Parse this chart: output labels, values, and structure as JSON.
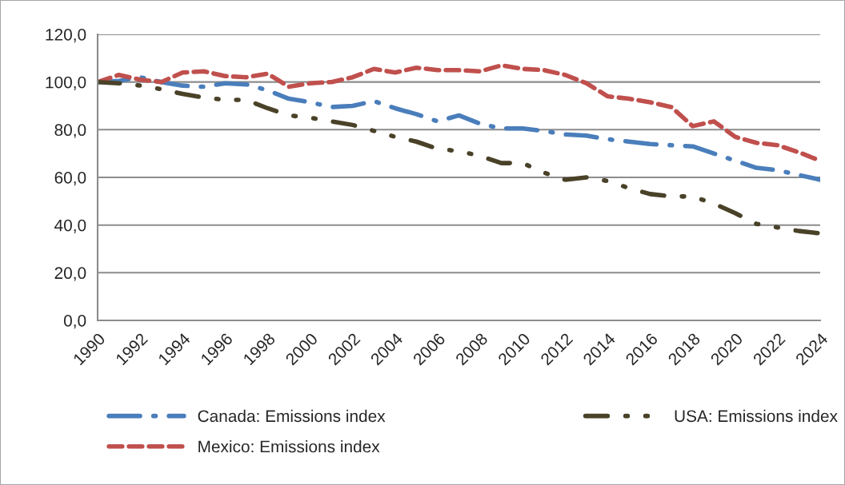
{
  "chart_data": {
    "type": "line",
    "x": [
      1990,
      1991,
      1992,
      1993,
      1994,
      1995,
      1996,
      1997,
      1998,
      1999,
      2000,
      2001,
      2002,
      2003,
      2004,
      2005,
      2006,
      2007,
      2008,
      2009,
      2010,
      2011,
      2012,
      2013,
      2014,
      2015,
      2016,
      2017,
      2018,
      2019,
      2020,
      2021,
      2022,
      2023,
      2024
    ],
    "series": [
      {
        "name": "Canada: Emissions index",
        "color": "#4a7ebb",
        "line_style": "dashed",
        "values": [
          100,
          100.5,
          102,
          100,
          98.5,
          98,
          99.5,
          99,
          96.5,
          93,
          91.5,
          89.5,
          90,
          92,
          89,
          86.5,
          83.5,
          86,
          82.5,
          80.5,
          80.5,
          79.5,
          78,
          77.5,
          76,
          75,
          74,
          73.5,
          73,
          70,
          67,
          64,
          63,
          61,
          59
        ]
      },
      {
        "name": "Mexico: Emissions index",
        "color": "#c0504d",
        "line_style": "dashed",
        "values": [
          100,
          103,
          101,
          100,
          104,
          104.5,
          102.5,
          102,
          103.5,
          98,
          99.5,
          100,
          102,
          105.5,
          104,
          106,
          105,
          105,
          104.5,
          107,
          105.5,
          105,
          103,
          99.5,
          94,
          93,
          91.5,
          89.5,
          81.5,
          83.5,
          77,
          74.5,
          73.5,
          70.5,
          67
        ]
      },
      {
        "name": "USA: Emissions index",
        "color": "#4a4228",
        "line_style": "dashed",
        "values": [
          100,
          99.5,
          98.5,
          97,
          95,
          93.5,
          92.5,
          92.5,
          89,
          86,
          85,
          83.5,
          82,
          79.5,
          77,
          75,
          72,
          71,
          69,
          66,
          66,
          62,
          59,
          60,
          58.5,
          55.5,
          53,
          52,
          52,
          49,
          45,
          40.5,
          39,
          37.5,
          36.5
        ]
      }
    ],
    "xlim": [
      1990,
      2024
    ],
    "xticks": [
      1990,
      1992,
      1994,
      1996,
      1998,
      2000,
      2002,
      2004,
      2006,
      2008,
      2010,
      2012,
      2014,
      2016,
      2018,
      2020,
      2022,
      2024
    ],
    "ylim": [
      0,
      120
    ],
    "yticks": [
      {
        "value": 0,
        "label": "0,0"
      },
      {
        "value": 20,
        "label": "20,0"
      },
      {
        "value": 40,
        "label": "40,0"
      },
      {
        "value": 60,
        "label": "60,0"
      },
      {
        "value": 80,
        "label": "80,0"
      },
      {
        "value": 100,
        "label": "100,0"
      },
      {
        "value": 120,
        "label": "120,0"
      }
    ],
    "grid": "y",
    "legend": "bottom"
  }
}
